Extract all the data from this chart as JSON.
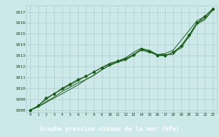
{
  "title": "Graphe pression niveau de la mer (hPa)",
  "background_color": "#cce8e8",
  "label_bg_color": "#2e7d5e",
  "label_text_color": "#ffffff",
  "grid_color": "#aacccc",
  "line_color": "#1a5c1a",
  "xlim": [
    -0.5,
    23.5
  ],
  "ylim": [
    1007.8,
    1017.6
  ],
  "yticks": [
    1008,
    1009,
    1010,
    1011,
    1012,
    1013,
    1014,
    1015,
    1016,
    1017
  ],
  "xticks": [
    0,
    1,
    2,
    3,
    4,
    5,
    6,
    7,
    8,
    9,
    10,
    11,
    12,
    13,
    14,
    15,
    16,
    17,
    18,
    19,
    20,
    21,
    22,
    23
  ],
  "series1": [
    1008.0,
    1008.3,
    1008.7,
    1009.1,
    1009.5,
    1009.9,
    1010.3,
    1010.8,
    1011.2,
    1011.7,
    1012.1,
    1012.4,
    1012.7,
    1013.1,
    1013.5,
    1013.3,
    1013.1,
    1013.1,
    1013.1,
    1013.9,
    1014.7,
    1015.9,
    1016.3,
    1017.2
  ],
  "series2": [
    1008.0,
    1008.3,
    1008.8,
    1009.2,
    1009.7,
    1010.1,
    1010.5,
    1010.8,
    1011.2,
    1011.7,
    1012.1,
    1012.4,
    1012.6,
    1013.0,
    1013.6,
    1013.5,
    1013.1,
    1013.0,
    1013.3,
    1013.7,
    1014.8,
    1016.0,
    1016.4,
    1017.2
  ],
  "series3": [
    1008.0,
    1008.4,
    1009.0,
    1009.5,
    1009.9,
    1010.3,
    1010.7,
    1011.1,
    1011.5,
    1011.9,
    1012.3,
    1012.5,
    1012.8,
    1013.3,
    1013.7,
    1013.4,
    1013.1,
    1013.2,
    1013.5,
    1014.4,
    1015.3,
    1016.2,
    1016.6,
    1017.3
  ],
  "series4": [
    1008.0,
    1008.4,
    1009.1,
    1009.5,
    1010.0,
    1010.4,
    1010.8,
    1011.1,
    1011.5,
    1011.9,
    1012.2,
    1012.5,
    1012.7,
    1013.1,
    1013.6,
    1013.4,
    1013.0,
    1013.0,
    1013.3,
    1013.9,
    1014.9,
    1016.0,
    1016.6,
    1017.3
  ]
}
